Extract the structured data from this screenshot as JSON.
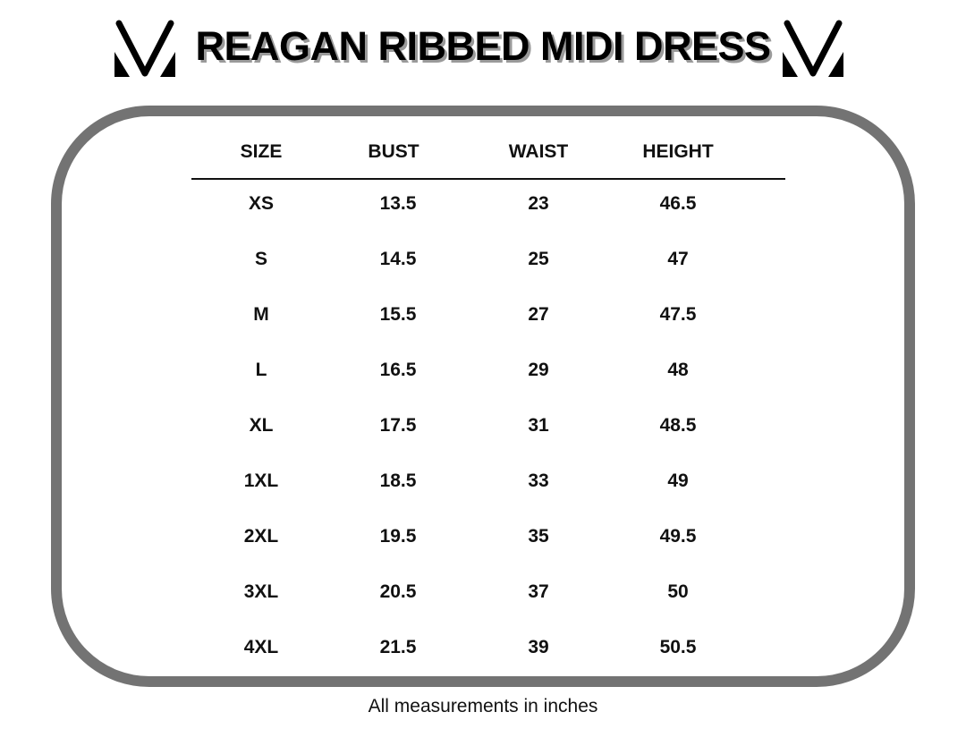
{
  "header": {
    "title": "REAGAN RIBBED MIDI DRESS",
    "logo_icon": "v-monogram-logo"
  },
  "table": {
    "headers": [
      "SIZE",
      "BUST",
      "WAIST",
      "HEIGHT"
    ],
    "rows": [
      [
        "XS",
        "13.5",
        "23",
        "46.5"
      ],
      [
        "S",
        "14.5",
        "25",
        "47"
      ],
      [
        "M",
        "15.5",
        "27",
        "47.5"
      ],
      [
        "L",
        "16.5",
        "29",
        "48"
      ],
      [
        "XL",
        "17.5",
        "31",
        "48.5"
      ],
      [
        "1XL",
        "18.5",
        "33",
        "49"
      ],
      [
        "2XL",
        "19.5",
        "35",
        "49.5"
      ],
      [
        "3XL",
        "20.5",
        "37",
        "50"
      ],
      [
        "4XL",
        "21.5",
        "39",
        "50.5"
      ]
    ]
  },
  "footer": {
    "note": "All measurements in inches"
  },
  "colors": {
    "frame": "#737373",
    "text": "#111111",
    "title_shadow": "#9a9a9a"
  }
}
